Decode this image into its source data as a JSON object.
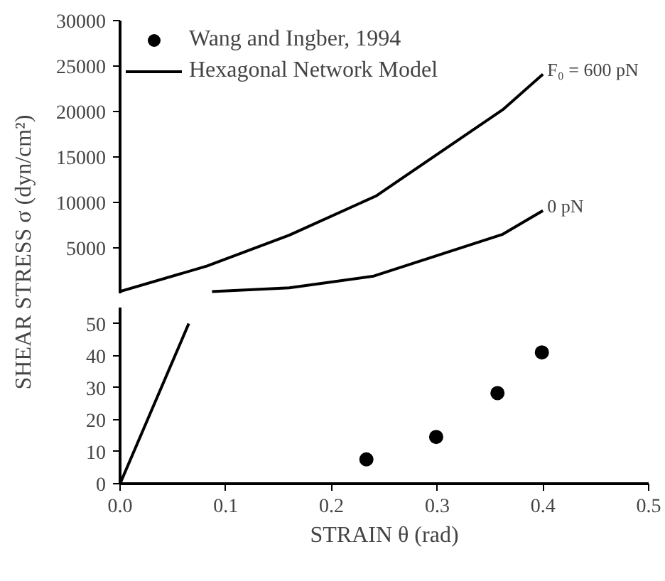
{
  "chart_data": [
    {
      "type": "line",
      "ylabel": "SHEAR STRESS σ (dyn/cm²)",
      "xlim": [
        0,
        0.5
      ],
      "ylim": [
        0,
        30000
      ],
      "yticks": [
        5000,
        10000,
        15000,
        20000,
        25000,
        30000
      ],
      "tick_labels": "y",
      "legend": "top left",
      "series": [
        {
          "name": "Hexagonal Network Model",
          "color": "#000000",
          "x": [
            0,
            0.082,
            0.16,
            0.242,
            0.362,
            0.4
          ],
          "values": [
            200,
            3000,
            6400,
            10700,
            20200,
            24100
          ]
        },
        {
          "color": "#000000",
          "x": [
            0.087,
            0.16,
            0.24,
            0.362,
            0.4
          ],
          "values": [
            200,
            600,
            1900,
            6500,
            9100
          ]
        }
      ],
      "annotations": [
        {
          "text": "F₀ = 600 pN",
          "x": 0.4,
          "y": 24100
        },
        {
          "text": "0 pN",
          "x": 0.4,
          "y": 9100
        }
      ]
    },
    {
      "type": "scatter",
      "xlabel": "STRAIN θ (rad)",
      "xlim": [
        0,
        0.5
      ],
      "ylim": [
        0,
        55
      ],
      "xticks": [
        {
          "value": 0,
          "label": "0.0"
        },
        0.1,
        0.2,
        0.3,
        0.4,
        0.5
      ],
      "yticks": [
        0,
        10,
        20,
        30,
        40,
        50
      ],
      "marker": "circle",
      "series": [
        {
          "name": "Wang and Ingber, 1994",
          "color": "#000000",
          "x": [
            0.233,
            0.299,
            0.357,
            0.399
          ],
          "values": [
            7.6,
            14.6,
            28.3,
            41
          ]
        },
        {
          "type": "line",
          "marker": "none",
          "color": "#000000",
          "x": [
            0,
            0.065
          ],
          "values": [
            0,
            50
          ]
        }
      ]
    }
  ]
}
